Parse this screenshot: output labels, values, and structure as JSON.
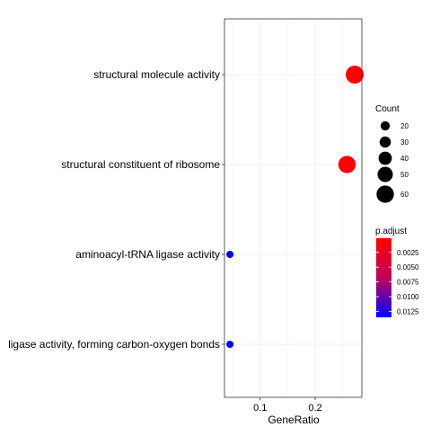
{
  "chart_data": {
    "type": "scatter",
    "title": "",
    "xlabel": "GeneRatio",
    "ylabel": "",
    "xlim": [
      0.035,
      0.285
    ],
    "x_ticks": [
      0.1,
      0.2
    ],
    "x_tick_labels": [
      "0.1",
      "0.2"
    ],
    "grid": true,
    "categories": [
      "structural molecule activity",
      "structural constituent of ribosome",
      "aminoacyl-tRNA ligase activity",
      "ligase activity, forming carbon-oxygen bonds"
    ],
    "points": [
      {
        "term": "structural molecule activity",
        "gene_ratio": 0.272,
        "count": 63,
        "p_adjust": 0.0001,
        "color": "#ff0000"
      },
      {
        "term": "structural constituent of ribosome",
        "gene_ratio": 0.258,
        "count": 60,
        "p_adjust": 0.0002,
        "color": "#ff0008"
      },
      {
        "term": "aminoacyl-tRNA ligase activity",
        "gene_ratio": 0.045,
        "count": 10,
        "p_adjust": 0.013,
        "color": "#0000ff"
      },
      {
        "term": "ligase activity, forming carbon-oxygen bonds",
        "gene_ratio": 0.045,
        "count": 10,
        "p_adjust": 0.013,
        "color": "#0000ff"
      }
    ],
    "size_legend": {
      "title": "Count",
      "values": [
        20,
        30,
        40,
        50,
        60
      ],
      "labels": [
        "20",
        "30",
        "40",
        "50",
        "60"
      ]
    },
    "color_legend": {
      "title": "p.adjust",
      "range": [
        0.0001,
        0.0135
      ],
      "ticks": [
        0.0025,
        0.005,
        0.0075,
        0.01,
        0.0125
      ],
      "tick_labels": [
        "0.0025",
        "0.0050",
        "0.0075",
        "0.0100",
        "0.0125"
      ],
      "low_color": "#ff0000",
      "high_color": "#0000ff"
    },
    "legend_placement": "right"
  }
}
